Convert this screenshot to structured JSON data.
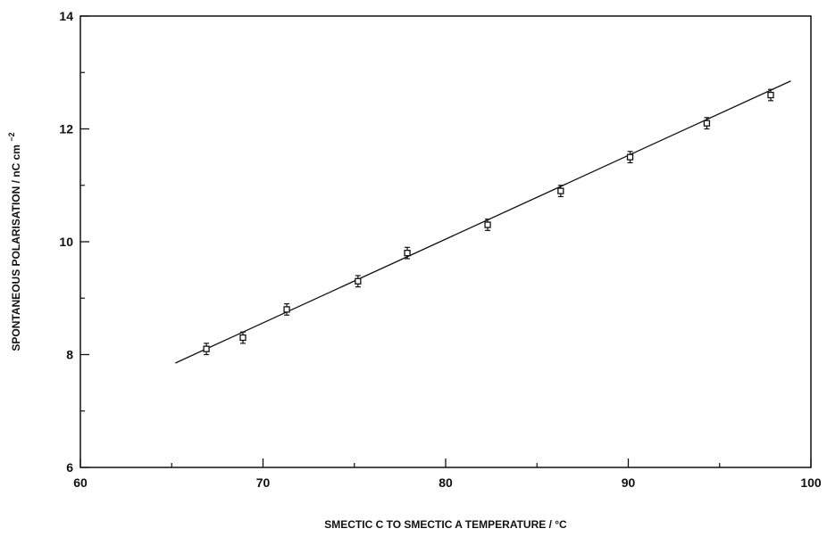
{
  "chart_data": {
    "type": "scatter",
    "xlabel": "SMECTIC C TO SMECTIC A TEMPERATURE / °C",
    "ylabel_main": "SPONTANEOUS POLARISATION / nC  cm",
    "ylabel_exp": "−2",
    "xlim": [
      60,
      100
    ],
    "ylim": [
      6,
      14
    ],
    "x_ticks": [
      60,
      70,
      80,
      90,
      100
    ],
    "y_ticks": [
      6,
      8,
      10,
      12,
      14
    ],
    "grid": false,
    "series": [
      {
        "marker": "open-square",
        "error_bars": true,
        "x": [
          66.9,
          68.9,
          71.3,
          75.2,
          77.9,
          82.3,
          86.3,
          90.1,
          94.3,
          97.8
        ],
        "y": [
          8.1,
          8.3,
          8.8,
          9.3,
          9.8,
          10.3,
          10.9,
          11.5,
          12.1,
          12.6
        ],
        "yerr": [
          0.1,
          0.1,
          0.1,
          0.1,
          0.1,
          0.1,
          0.1,
          0.1,
          0.1,
          0.1
        ]
      }
    ],
    "fit_line": {
      "x": [
        65.2,
        98.9
      ],
      "y": [
        7.85,
        12.85
      ]
    }
  }
}
